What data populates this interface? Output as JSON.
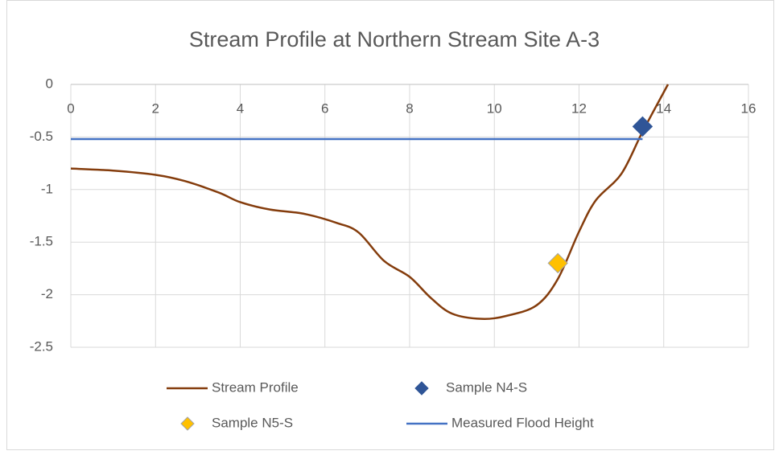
{
  "chart_data": {
    "type": "scatter",
    "title": "Stream Profile at Northern Stream Site A-3",
    "xlim": [
      0,
      16
    ],
    "xticks": [
      0,
      2,
      4,
      6,
      8,
      10,
      12,
      14,
      16
    ],
    "ylim": [
      -2.5,
      0
    ],
    "yticks": [
      0,
      -0.5,
      -1,
      -1.5,
      -2,
      -2.5
    ],
    "grid": true,
    "series": [
      {
        "name": "Stream Profile",
        "kind": "smooth-line",
        "color": "#843c0c",
        "x": [
          0,
          1,
          2,
          2.7,
          3.5,
          4,
          4.7,
          5.5,
          6.3,
          6.8,
          7.4,
          8,
          8.5,
          9,
          9.7,
          10.3,
          11,
          11.5,
          12,
          12.4,
          13,
          13.5,
          14.1
        ],
        "values": [
          -0.8,
          -0.82,
          -0.86,
          -0.92,
          -1.03,
          -1.12,
          -1.19,
          -1.23,
          -1.32,
          -1.41,
          -1.68,
          -1.83,
          -2.03,
          -2.18,
          -2.23,
          -2.2,
          -2.1,
          -1.85,
          -1.4,
          -1.1,
          -0.85,
          -0.45,
          0
        ]
      },
      {
        "name": "Sample N4-S",
        "kind": "marker",
        "color": "#2f5597",
        "x": [
          13.5
        ],
        "values": [
          -0.4
        ]
      },
      {
        "name": "Sample N5-S",
        "kind": "marker",
        "color": "#ffc000",
        "x": [
          11.5
        ],
        "values": [
          -1.7
        ]
      },
      {
        "name": "Measured Flood Height",
        "kind": "line",
        "color": "#4472c4",
        "x": [
          0,
          13.5
        ],
        "values": [
          -0.52,
          -0.52
        ]
      }
    ]
  }
}
